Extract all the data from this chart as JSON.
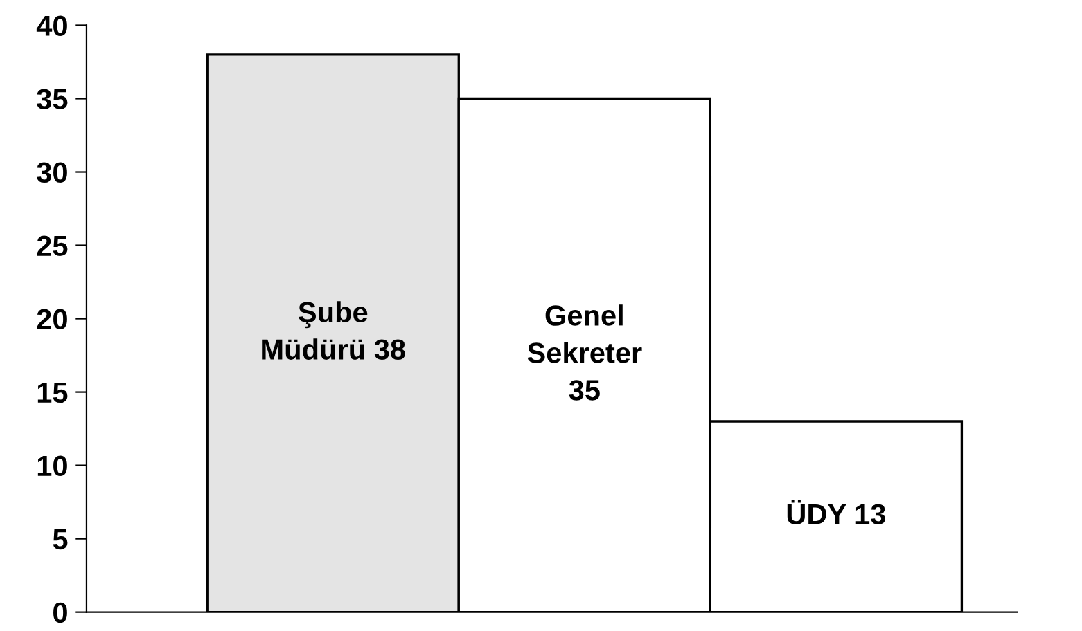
{
  "chart_data": {
    "type": "bar",
    "categories": [
      null,
      null,
      null
    ],
    "values": [
      38,
      35,
      13
    ],
    "colors": [
      "#e4e4e4",
      "#ffffff",
      "#ffffff"
    ],
    "value_labels": [
      "Şube\nMüdürü 38",
      "Genel\nSekreter\n35",
      "ÜDY 13"
    ],
    "ylim": [
      0,
      40
    ],
    "yticks": [
      0,
      5,
      10,
      15,
      20,
      25,
      30,
      35,
      40
    ],
    "grid": false,
    "legend": false
  }
}
